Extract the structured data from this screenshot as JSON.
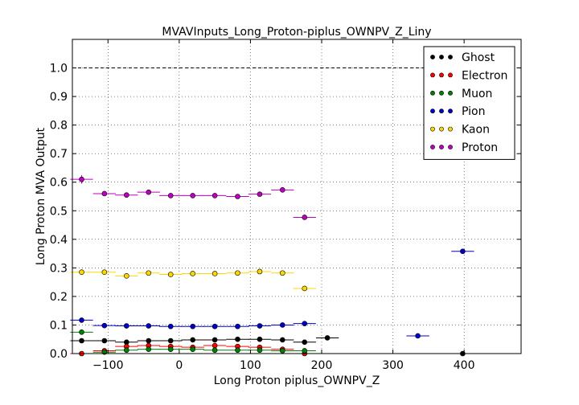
{
  "chart_data": {
    "type": "scatter",
    "title": "MVAVInputs_Long_Proton-piplus_OWNPV_Z_Liny",
    "xlabel": "Long Proton piplus_OWNPV_Z",
    "ylabel": "Long Proton MVA Output",
    "xlim": [
      -150,
      480
    ],
    "ylim": [
      0,
      1.1
    ],
    "xticks": [
      -100,
      0,
      100,
      200,
      300,
      400
    ],
    "yticks": [
      0.0,
      0.1,
      0.2,
      0.3,
      0.4,
      0.5,
      0.6,
      0.7,
      0.8,
      0.9,
      1.0
    ],
    "tick_labels_x": [
      "−100",
      "0",
      "100",
      "200",
      "300",
      "400"
    ],
    "tick_labels_y": [
      "0.0",
      "0.1",
      "0.2",
      "0.3",
      "0.4",
      "0.5",
      "0.6",
      "0.7",
      "0.8",
      "0.9",
      "1.0"
    ],
    "reference_line": 1.0,
    "grid": true,
    "legend_position": "top-right",
    "series": [
      {
        "name": "Ghost",
        "color": "#000000",
        "points": [
          {
            "x": -137,
            "xerr": 16,
            "y": 0.045,
            "yerr": 0.004
          },
          {
            "x": -105,
            "xerr": 16,
            "y": 0.045,
            "yerr": 0.004
          },
          {
            "x": -74,
            "xerr": 16,
            "y": 0.04,
            "yerr": 0.004
          },
          {
            "x": -43,
            "xerr": 16,
            "y": 0.045,
            "yerr": 0.004
          },
          {
            "x": -12,
            "xerr": 16,
            "y": 0.045,
            "yerr": 0.004
          },
          {
            "x": 19,
            "xerr": 16,
            "y": 0.048,
            "yerr": 0.004
          },
          {
            "x": 50,
            "xerr": 16,
            "y": 0.048,
            "yerr": 0.004
          },
          {
            "x": 82,
            "xerr": 16,
            "y": 0.05,
            "yerr": 0.004
          },
          {
            "x": 113,
            "xerr": 16,
            "y": 0.05,
            "yerr": 0.004
          },
          {
            "x": 145,
            "xerr": 16,
            "y": 0.048,
            "yerr": 0.004
          },
          {
            "x": 176,
            "xerr": 16,
            "y": 0.04,
            "yerr": 0.004
          },
          {
            "x": 208,
            "xerr": 16,
            "y": 0.055,
            "yerr": 0.004
          },
          {
            "x": 398,
            "xerr": 16,
            "y": 0.0,
            "yerr": 0.003
          }
        ]
      },
      {
        "name": "Electron",
        "color": "#ff0000",
        "points": [
          {
            "x": -137,
            "xerr": 16,
            "y": 0.0,
            "yerr": 0.002
          },
          {
            "x": -105,
            "xerr": 16,
            "y": 0.01,
            "yerr": 0.003
          },
          {
            "x": -74,
            "xerr": 16,
            "y": 0.025,
            "yerr": 0.003
          },
          {
            "x": -43,
            "xerr": 16,
            "y": 0.028,
            "yerr": 0.003
          },
          {
            "x": -12,
            "xerr": 16,
            "y": 0.025,
            "yerr": 0.003
          },
          {
            "x": 19,
            "xerr": 16,
            "y": 0.022,
            "yerr": 0.003
          },
          {
            "x": 50,
            "xerr": 16,
            "y": 0.028,
            "yerr": 0.003
          },
          {
            "x": 82,
            "xerr": 16,
            "y": 0.025,
            "yerr": 0.003
          },
          {
            "x": 113,
            "xerr": 16,
            "y": 0.022,
            "yerr": 0.003
          },
          {
            "x": 145,
            "xerr": 16,
            "y": 0.015,
            "yerr": 0.003
          },
          {
            "x": 176,
            "xerr": 16,
            "y": 0.0,
            "yerr": 0.002
          }
        ]
      },
      {
        "name": "Muon",
        "color": "#008000",
        "points": [
          {
            "x": -137,
            "xerr": 16,
            "y": 0.075,
            "yerr": 0.008
          },
          {
            "x": -105,
            "xerr": 16,
            "y": 0.005,
            "yerr": 0.003
          },
          {
            "x": -74,
            "xerr": 16,
            "y": 0.012,
            "yerr": 0.003
          },
          {
            "x": -43,
            "xerr": 16,
            "y": 0.015,
            "yerr": 0.003
          },
          {
            "x": -12,
            "xerr": 16,
            "y": 0.015,
            "yerr": 0.003
          },
          {
            "x": 19,
            "xerr": 16,
            "y": 0.015,
            "yerr": 0.003
          },
          {
            "x": 50,
            "xerr": 16,
            "y": 0.012,
            "yerr": 0.003
          },
          {
            "x": 82,
            "xerr": 16,
            "y": 0.012,
            "yerr": 0.003
          },
          {
            "x": 113,
            "xerr": 16,
            "y": 0.012,
            "yerr": 0.003
          },
          {
            "x": 145,
            "xerr": 16,
            "y": 0.01,
            "yerr": 0.003
          },
          {
            "x": 176,
            "xerr": 16,
            "y": 0.01,
            "yerr": 0.003
          }
        ]
      },
      {
        "name": "Pion",
        "color": "#0000cc",
        "points": [
          {
            "x": -137,
            "xerr": 16,
            "y": 0.117,
            "yerr": 0.004
          },
          {
            "x": -105,
            "xerr": 16,
            "y": 0.098,
            "yerr": 0.003
          },
          {
            "x": -74,
            "xerr": 16,
            "y": 0.097,
            "yerr": 0.003
          },
          {
            "x": -43,
            "xerr": 16,
            "y": 0.097,
            "yerr": 0.003
          },
          {
            "x": -12,
            "xerr": 16,
            "y": 0.095,
            "yerr": 0.003
          },
          {
            "x": 19,
            "xerr": 16,
            "y": 0.095,
            "yerr": 0.003
          },
          {
            "x": 50,
            "xerr": 16,
            "y": 0.095,
            "yerr": 0.003
          },
          {
            "x": 82,
            "xerr": 16,
            "y": 0.095,
            "yerr": 0.003
          },
          {
            "x": 113,
            "xerr": 16,
            "y": 0.097,
            "yerr": 0.003
          },
          {
            "x": 145,
            "xerr": 16,
            "y": 0.1,
            "yerr": 0.003
          },
          {
            "x": 176,
            "xerr": 16,
            "y": 0.105,
            "yerr": 0.004
          },
          {
            "x": 335,
            "xerr": 16,
            "y": 0.062,
            "yerr": 0.004
          },
          {
            "x": 398,
            "xerr": 16,
            "y": 0.358,
            "yerr": 0.005
          }
        ]
      },
      {
        "name": "Kaon",
        "color": "#ffd700",
        "points": [
          {
            "x": -137,
            "xerr": 16,
            "y": 0.285,
            "yerr": 0.004
          },
          {
            "x": -105,
            "xerr": 16,
            "y": 0.285,
            "yerr": 0.004
          },
          {
            "x": -74,
            "xerr": 16,
            "y": 0.272,
            "yerr": 0.004
          },
          {
            "x": -43,
            "xerr": 16,
            "y": 0.282,
            "yerr": 0.004
          },
          {
            "x": -12,
            "xerr": 16,
            "y": 0.277,
            "yerr": 0.004
          },
          {
            "x": 19,
            "xerr": 16,
            "y": 0.28,
            "yerr": 0.004
          },
          {
            "x": 50,
            "xerr": 16,
            "y": 0.28,
            "yerr": 0.004
          },
          {
            "x": 82,
            "xerr": 16,
            "y": 0.282,
            "yerr": 0.004
          },
          {
            "x": 113,
            "xerr": 16,
            "y": 0.287,
            "yerr": 0.004
          },
          {
            "x": 145,
            "xerr": 16,
            "y": 0.282,
            "yerr": 0.004
          },
          {
            "x": 176,
            "xerr": 16,
            "y": 0.228,
            "yerr": 0.005
          }
        ]
      },
      {
        "name": "Proton",
        "color": "#bf00bf",
        "points": [
          {
            "x": -137,
            "xerr": 16,
            "y": 0.61,
            "yerr": 0.015
          },
          {
            "x": -105,
            "xerr": 16,
            "y": 0.56,
            "yerr": 0.005
          },
          {
            "x": -74,
            "xerr": 16,
            "y": 0.555,
            "yerr": 0.005
          },
          {
            "x": -43,
            "xerr": 16,
            "y": 0.565,
            "yerr": 0.005
          },
          {
            "x": -12,
            "xerr": 16,
            "y": 0.553,
            "yerr": 0.005
          },
          {
            "x": 19,
            "xerr": 16,
            "y": 0.553,
            "yerr": 0.005
          },
          {
            "x": 50,
            "xerr": 16,
            "y": 0.553,
            "yerr": 0.005
          },
          {
            "x": 82,
            "xerr": 16,
            "y": 0.55,
            "yerr": 0.005
          },
          {
            "x": 113,
            "xerr": 16,
            "y": 0.558,
            "yerr": 0.005
          },
          {
            "x": 145,
            "xerr": 16,
            "y": 0.573,
            "yerr": 0.005
          },
          {
            "x": 176,
            "xerr": 16,
            "y": 0.477,
            "yerr": 0.008
          }
        ]
      }
    ]
  }
}
